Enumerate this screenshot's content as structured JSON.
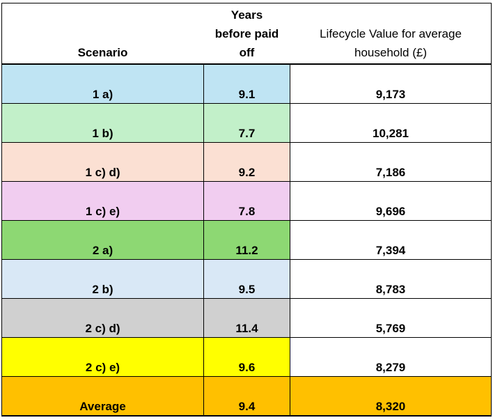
{
  "table": {
    "headers": {
      "scenario": "Scenario",
      "years_lines": [
        "Years",
        "before paid",
        "off"
      ],
      "lifecycle_lines": [
        "Lifecycle Value for average",
        "household (£)"
      ]
    },
    "rows": [
      {
        "scenario": "1 a)",
        "years": "9.1",
        "lifecycle": "9,173",
        "color": "#bfe4f3",
        "lifecycle_color": "#ffffff"
      },
      {
        "scenario": "1 b)",
        "years": "7.7",
        "lifecycle": "10,281",
        "color": "#c2f0c9",
        "lifecycle_color": "#ffffff"
      },
      {
        "scenario": "1 c) d)",
        "years": "9.2",
        "lifecycle": "7,186",
        "color": "#fbe0d3",
        "lifecycle_color": "#ffffff"
      },
      {
        "scenario": "1 c) e)",
        "years": "7.8",
        "lifecycle": "9,696",
        "color": "#f1cdf0",
        "lifecycle_color": "#ffffff"
      },
      {
        "scenario": "2 a)",
        "years": "11.2",
        "lifecycle": "7,394",
        "color": "#8dd873",
        "lifecycle_color": "#ffffff"
      },
      {
        "scenario": "2 b)",
        "years": "9.5",
        "lifecycle": "8,783",
        "color": "#d9e8f6",
        "lifecycle_color": "#ffffff"
      },
      {
        "scenario": "2 c) d)",
        "years": "11.4",
        "lifecycle": "5,769",
        "color": "#d0d0d0",
        "lifecycle_color": "#ffffff"
      },
      {
        "scenario": "2 c) e)",
        "years": "9.6",
        "lifecycle": "8,279",
        "color": "#ffff00",
        "lifecycle_color": "#ffffff"
      },
      {
        "scenario": "Average",
        "years": "9.4",
        "lifecycle": "8,320",
        "color": "#ffc000",
        "lifecycle_color": "#ffc000"
      }
    ]
  }
}
